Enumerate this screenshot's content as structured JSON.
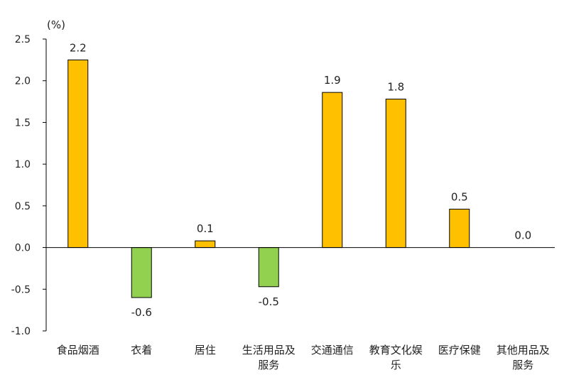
{
  "chart_data": {
    "type": "bar",
    "unit": "(%)",
    "categories": [
      "食品烟酒",
      "衣着",
      "居住",
      "生活用品及服务",
      "交通通信",
      "教育文化娱乐",
      "医疗保健",
      "其他用品及服务"
    ],
    "category_lines": [
      [
        "食品烟酒"
      ],
      [
        "衣着"
      ],
      [
        "居住"
      ],
      [
        "生活用品及",
        "服务"
      ],
      [
        "交通通信"
      ],
      [
        "教育文化娱",
        "乐"
      ],
      [
        "医疗保健"
      ],
      [
        "其他用品及",
        "服务"
      ]
    ],
    "values": [
      2.25,
      -0.6,
      0.08,
      -0.47,
      1.86,
      1.78,
      0.46,
      0.0
    ],
    "data_labels": [
      "2.2",
      "-0.6",
      "0.1",
      "-0.5",
      "1.9",
      "1.8",
      "0.5",
      "0.0"
    ],
    "yticks": [
      "2.5",
      "2.0",
      "1.5",
      "1.0",
      "0.5",
      "0.0",
      "-0.5",
      "-1.0"
    ],
    "ylim": [
      -1.0,
      2.5
    ],
    "grid": false,
    "colors": {
      "positive": "#FFC000",
      "negative": "#92D050",
      "outline": "#000000"
    }
  }
}
